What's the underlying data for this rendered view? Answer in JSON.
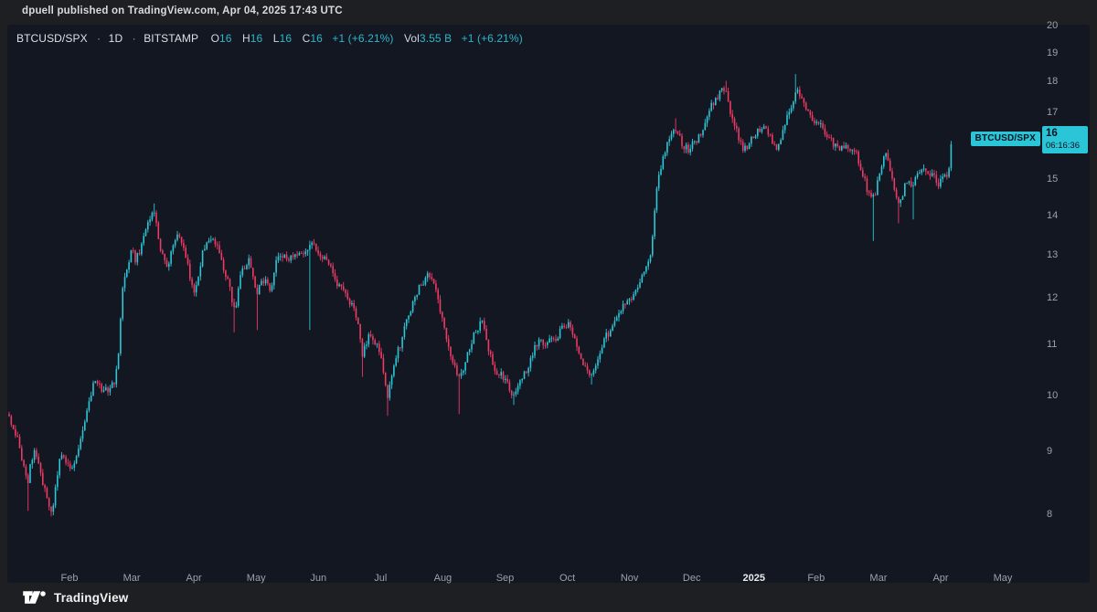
{
  "header": {
    "published_line": "dpuell published on TradingView.com, Apr 04, 2025 17:43 UTC"
  },
  "legend": {
    "symbol": "BTCUSD/SPX",
    "separator": "·",
    "interval": "1D",
    "exchange": "BITSTAMP",
    "ohlc": [
      {
        "label": "O",
        "value": "16"
      },
      {
        "label": "H",
        "value": "16"
      },
      {
        "label": "L",
        "value": "16"
      },
      {
        "label": "C",
        "value": "16"
      }
    ],
    "change": "+1 (+6.21%)",
    "volume_label": "Vol",
    "volume_value": "3.55 B",
    "volume_change": "+1 (+6.21%)"
  },
  "price_label": {
    "tag": "BTCUSD/SPX",
    "price": "16",
    "countdown": "06:16:36"
  },
  "axes": {
    "price_ticks": [
      20,
      19,
      18,
      17,
      16,
      15,
      14,
      13,
      12,
      11,
      10,
      9,
      8
    ],
    "time_ticks": [
      {
        "label": "Feb"
      },
      {
        "label": "Mar"
      },
      {
        "label": "Apr"
      },
      {
        "label": "May"
      },
      {
        "label": "Jun"
      },
      {
        "label": "Jul"
      },
      {
        "label": "Aug"
      },
      {
        "label": "Sep"
      },
      {
        "label": "Oct"
      },
      {
        "label": "Nov"
      },
      {
        "label": "Dec"
      },
      {
        "label": "2025",
        "emphasis": true
      },
      {
        "label": "Feb"
      },
      {
        "label": "Mar"
      },
      {
        "label": "Apr"
      },
      {
        "label": "May"
      }
    ]
  },
  "footer": {
    "brand": "TradingView",
    "logo_icon": "tradingview-logo"
  },
  "colors": {
    "up_candle": "#2cc6d6",
    "down_candle": "#ee3a64",
    "accent_text": "#2db6ca",
    "label_bg": "#2bc5d8",
    "chart_bg": "#131722",
    "frame_bg": "#1e1f22",
    "text_main": "#d9dadc",
    "text_muted": "#9ba1ab"
  },
  "chart_data": {
    "type": "candlestick",
    "title": "BTCUSD/SPX ratio, daily candles, BITSTAMP",
    "scale": "log",
    "grid": false,
    "legend_position": "top-left",
    "ylim": [
      7.6,
      20.4
    ],
    "x_span": [
      "Jan 2024",
      "May 2025"
    ],
    "last_close": 16,
    "last_change": "+1 (+6.21%)",
    "path_anchors": [
      [
        8,
        9.65
      ],
      [
        12,
        9.45
      ],
      [
        16,
        9.3
      ],
      [
        20,
        9.15
      ],
      [
        25,
        8.75
      ],
      [
        30,
        8.45
      ],
      [
        34,
        8.85
      ],
      [
        38,
        9.0
      ],
      [
        43,
        8.7
      ],
      [
        48,
        8.45
      ],
      [
        53,
        8.2
      ],
      [
        57,
        8.05
      ],
      [
        62,
        8.6
      ],
      [
        67,
        9.0
      ],
      [
        72,
        8.85
      ],
      [
        77,
        8.65
      ],
      [
        82,
        8.9
      ],
      [
        88,
        9.15
      ],
      [
        94,
        9.6
      ],
      [
        100,
        10.05
      ],
      [
        105,
        10.35
      ],
      [
        112,
        10.0
      ],
      [
        119,
        10.15
      ],
      [
        126,
        10.3
      ],
      [
        130,
        10.9
      ],
      [
        133,
        11.9
      ],
      [
        136,
        12.5
      ],
      [
        140,
        12.8
      ],
      [
        144,
        13.1
      ],
      [
        148,
        12.9
      ],
      [
        153,
        13.15
      ],
      [
        158,
        13.5
      ],
      [
        163,
        13.85
      ],
      [
        168,
        14.1
      ],
      [
        173,
        13.5
      ],
      [
        178,
        12.95
      ],
      [
        183,
        12.65
      ],
      [
        188,
        13.2
      ],
      [
        193,
        13.5
      ],
      [
        198,
        13.45
      ],
      [
        203,
        13.0
      ],
      [
        208,
        12.45
      ],
      [
        213,
        12.1
      ],
      [
        218,
        12.7
      ],
      [
        223,
        13.2
      ],
      [
        228,
        13.4
      ],
      [
        233,
        13.45
      ],
      [
        238,
        13.2
      ],
      [
        243,
        12.75
      ],
      [
        250,
        12.35
      ],
      [
        257,
        11.65
      ],
      [
        263,
        12.5
      ],
      [
        268,
        12.75
      ],
      [
        272,
        12.9
      ],
      [
        276,
        12.5
      ],
      [
        280,
        12.1
      ],
      [
        285,
        12.3
      ],
      [
        290,
        12.45
      ],
      [
        296,
        12.1
      ],
      [
        300,
        12.6
      ],
      [
        304,
        13.05
      ],
      [
        309,
        12.9
      ],
      [
        314,
        12.95
      ],
      [
        319,
        13.0
      ],
      [
        324,
        13.05
      ],
      [
        329,
        13.0
      ],
      [
        334,
        13.1
      ],
      [
        339,
        13.25
      ],
      [
        344,
        13.2
      ],
      [
        349,
        13.05
      ],
      [
        354,
        12.95
      ],
      [
        359,
        12.8
      ],
      [
        364,
        12.55
      ],
      [
        369,
        12.35
      ],
      [
        374,
        12.2
      ],
      [
        379,
        12.0
      ],
      [
        384,
        11.85
      ],
      [
        389,
        11.65
      ],
      [
        393,
        11.3
      ],
      [
        397,
        10.75
      ],
      [
        400,
        11.0
      ],
      [
        403,
        11.2
      ],
      [
        407,
        11.1
      ],
      [
        411,
        11.0
      ],
      [
        415,
        10.9
      ],
      [
        419,
        10.45
      ],
      [
        423,
        9.95
      ],
      [
        426,
        10.1
      ],
      [
        429,
        10.45
      ],
      [
        433,
        10.7
      ],
      [
        437,
        10.95
      ],
      [
        441,
        11.2
      ],
      [
        446,
        11.55
      ],
      [
        451,
        11.9
      ],
      [
        456,
        12.15
      ],
      [
        461,
        12.3
      ],
      [
        466,
        12.45
      ],
      [
        470,
        12.55
      ],
      [
        474,
        12.3
      ],
      [
        478,
        12.05
      ],
      [
        483,
        11.55
      ],
      [
        488,
        11.15
      ],
      [
        493,
        10.8
      ],
      [
        498,
        10.5
      ],
      [
        503,
        10.3
      ],
      [
        508,
        10.55
      ],
      [
        513,
        10.9
      ],
      [
        518,
        11.15
      ],
      [
        523,
        11.35
      ],
      [
        527,
        11.45
      ],
      [
        531,
        11.15
      ],
      [
        535,
        10.9
      ],
      [
        540,
        10.55
      ],
      [
        545,
        10.4
      ],
      [
        550,
        10.35
      ],
      [
        555,
        10.2
      ],
      [
        560,
        10.05
      ],
      [
        565,
        10.1
      ],
      [
        570,
        10.25
      ],
      [
        575,
        10.45
      ],
      [
        580,
        10.7
      ],
      [
        585,
        10.9
      ],
      [
        590,
        11.05
      ],
      [
        595,
        11.0
      ],
      [
        600,
        11.05
      ],
      [
        605,
        11.1
      ],
      [
        610,
        11.2
      ],
      [
        615,
        11.3
      ],
      [
        620,
        11.45
      ],
      [
        624,
        11.3
      ],
      [
        628,
        11.1
      ],
      [
        633,
        10.85
      ],
      [
        638,
        10.65
      ],
      [
        643,
        10.5
      ],
      [
        648,
        10.35
      ],
      [
        653,
        10.7
      ],
      [
        658,
        11.0
      ],
      [
        663,
        11.15
      ],
      [
        668,
        11.35
      ],
      [
        673,
        11.5
      ],
      [
        678,
        11.7
      ],
      [
        683,
        11.8
      ],
      [
        688,
        11.9
      ],
      [
        693,
        12.0
      ],
      [
        698,
        12.25
      ],
      [
        702,
        12.45
      ],
      [
        706,
        12.6
      ],
      [
        710,
        12.8
      ],
      [
        713,
        13.1
      ],
      [
        716,
        14.2
      ],
      [
        719,
        14.9
      ],
      [
        722,
        15.25
      ],
      [
        725,
        15.5
      ],
      [
        728,
        15.8
      ],
      [
        731,
        16.1
      ],
      [
        734,
        16.3
      ],
      [
        737,
        16.45
      ],
      [
        740,
        16.4
      ],
      [
        743,
        16.2
      ],
      [
        746,
        16.0
      ],
      [
        749,
        15.9
      ],
      [
        752,
        15.85
      ],
      [
        755,
        15.9
      ],
      [
        758,
        16.0
      ],
      [
        762,
        16.1
      ],
      [
        766,
        16.35
      ],
      [
        770,
        16.6
      ],
      [
        774,
        16.9
      ],
      [
        778,
        17.15
      ],
      [
        782,
        17.35
      ],
      [
        786,
        17.5
      ],
      [
        790,
        17.7
      ],
      [
        793,
        17.85
      ],
      [
        796,
        17.55
      ],
      [
        799,
        17.0
      ],
      [
        802,
        16.7
      ],
      [
        806,
        16.4
      ],
      [
        810,
        16.1
      ],
      [
        814,
        15.85
      ],
      [
        818,
        15.9
      ],
      [
        822,
        16.15
      ],
      [
        826,
        16.35
      ],
      [
        830,
        16.45
      ],
      [
        834,
        16.5
      ],
      [
        838,
        16.5
      ],
      [
        842,
        16.25
      ],
      [
        846,
        15.95
      ],
      [
        850,
        15.95
      ],
      [
        854,
        16.15
      ],
      [
        858,
        16.55
      ],
      [
        862,
        16.95
      ],
      [
        866,
        17.3
      ],
      [
        869,
        17.55
      ],
      [
        871,
        17.8
      ],
      [
        874,
        17.6
      ],
      [
        877,
        17.35
      ],
      [
        881,
        17.15
      ],
      [
        885,
        17.0
      ],
      [
        889,
        16.85
      ],
      [
        893,
        16.7
      ],
      [
        897,
        16.55
      ],
      [
        901,
        16.4
      ],
      [
        905,
        16.25
      ],
      [
        909,
        16.1
      ],
      [
        913,
        15.95
      ],
      [
        917,
        15.9
      ],
      [
        921,
        16.0
      ],
      [
        925,
        15.95
      ],
      [
        929,
        15.85
      ],
      [
        933,
        15.8
      ],
      [
        937,
        15.7
      ],
      [
        941,
        15.4
      ],
      [
        945,
        15.0
      ],
      [
        949,
        14.7
      ],
      [
        953,
        14.45
      ],
      [
        957,
        14.6
      ],
      [
        961,
        15.0
      ],
      [
        965,
        15.45
      ],
      [
        969,
        15.7
      ],
      [
        972,
        15.4
      ],
      [
        975,
        15.0
      ],
      [
        978,
        14.7
      ],
      [
        981,
        14.4
      ],
      [
        984,
        14.3
      ],
      [
        987,
        14.55
      ],
      [
        990,
        14.8
      ],
      [
        994,
        14.9
      ],
      [
        998,
        14.85
      ],
      [
        1002,
        15.05
      ],
      [
        1006,
        15.2
      ],
      [
        1010,
        15.4
      ],
      [
        1014,
        15.3
      ],
      [
        1018,
        15.1
      ],
      [
        1022,
        15.05
      ],
      [
        1026,
        14.75
      ],
      [
        1029,
        14.95
      ],
      [
        1032,
        15.1
      ],
      [
        1035,
        15.05
      ],
      [
        1037,
        14.85
      ],
      [
        1040,
        16.0
      ]
    ],
    "spikes": [
      [
        30,
        8.05,
        -1
      ],
      [
        57,
        7.97,
        -1
      ],
      [
        168,
        14.32,
        1
      ],
      [
        257,
        11.25,
        -1
      ],
      [
        281,
        11.3,
        -1
      ],
      [
        340,
        11.3,
        -1
      ],
      [
        397,
        10.35,
        -1
      ],
      [
        424,
        9.62,
        -1
      ],
      [
        503,
        9.65,
        -1
      ],
      [
        562,
        9.82,
        -1
      ],
      [
        648,
        10.2,
        -1
      ],
      [
        738,
        16.8,
        1
      ],
      [
        794,
        18.02,
        1
      ],
      [
        871,
        18.25,
        1
      ],
      [
        955,
        13.35,
        -1
      ],
      [
        983,
        13.8,
        -1
      ],
      [
        998,
        13.9,
        -1
      ],
      [
        1040,
        16.1,
        1
      ]
    ]
  }
}
